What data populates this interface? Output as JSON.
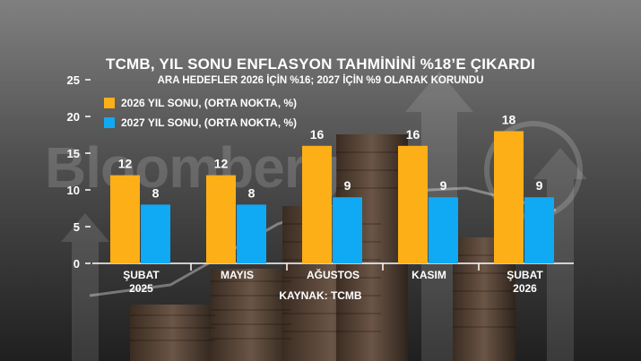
{
  "chart_data": {
    "type": "bar",
    "title": "TCMB, YIL SONU ENFLASYON TAHMİNİNİ %18’E ÇIKARDI",
    "subtitle": "ARA HEDEFLER 2026 İÇİN %16; 2027 İÇİN %9 OLARAK KORUNDU",
    "categories": [
      {
        "line1": "ŞUBAT",
        "line2": "2025"
      },
      {
        "line1": "MAYIS",
        "line2": ""
      },
      {
        "line1": "AĞUSTOS",
        "line2": ""
      },
      {
        "line1": "KASIM",
        "line2": ""
      },
      {
        "line1": "ŞUBAT",
        "line2": "2026"
      }
    ],
    "series": [
      {
        "name": "2026 YIL SONU, (ORTA NOKTA, %)",
        "color": "#FDAF17",
        "values": [
          12,
          12,
          16,
          16,
          18
        ]
      },
      {
        "name": "2027 YIL SONU, (ORTA NOKTA, %)",
        "color": "#0FA9F4",
        "values": [
          8,
          8,
          9,
          9,
          9
        ]
      }
    ],
    "ylim": [
      0,
      25
    ],
    "yticks": [
      0,
      5,
      10,
      15,
      20,
      25
    ],
    "xlabel": "",
    "ylabel": "",
    "grid": false,
    "legend": "top-left",
    "source": "KAYNAK: TCMB"
  },
  "watermark": "Bloomberg",
  "colors": {
    "background": "#2b2b2b",
    "text": "#ffffff",
    "axis": "#ffffff"
  }
}
